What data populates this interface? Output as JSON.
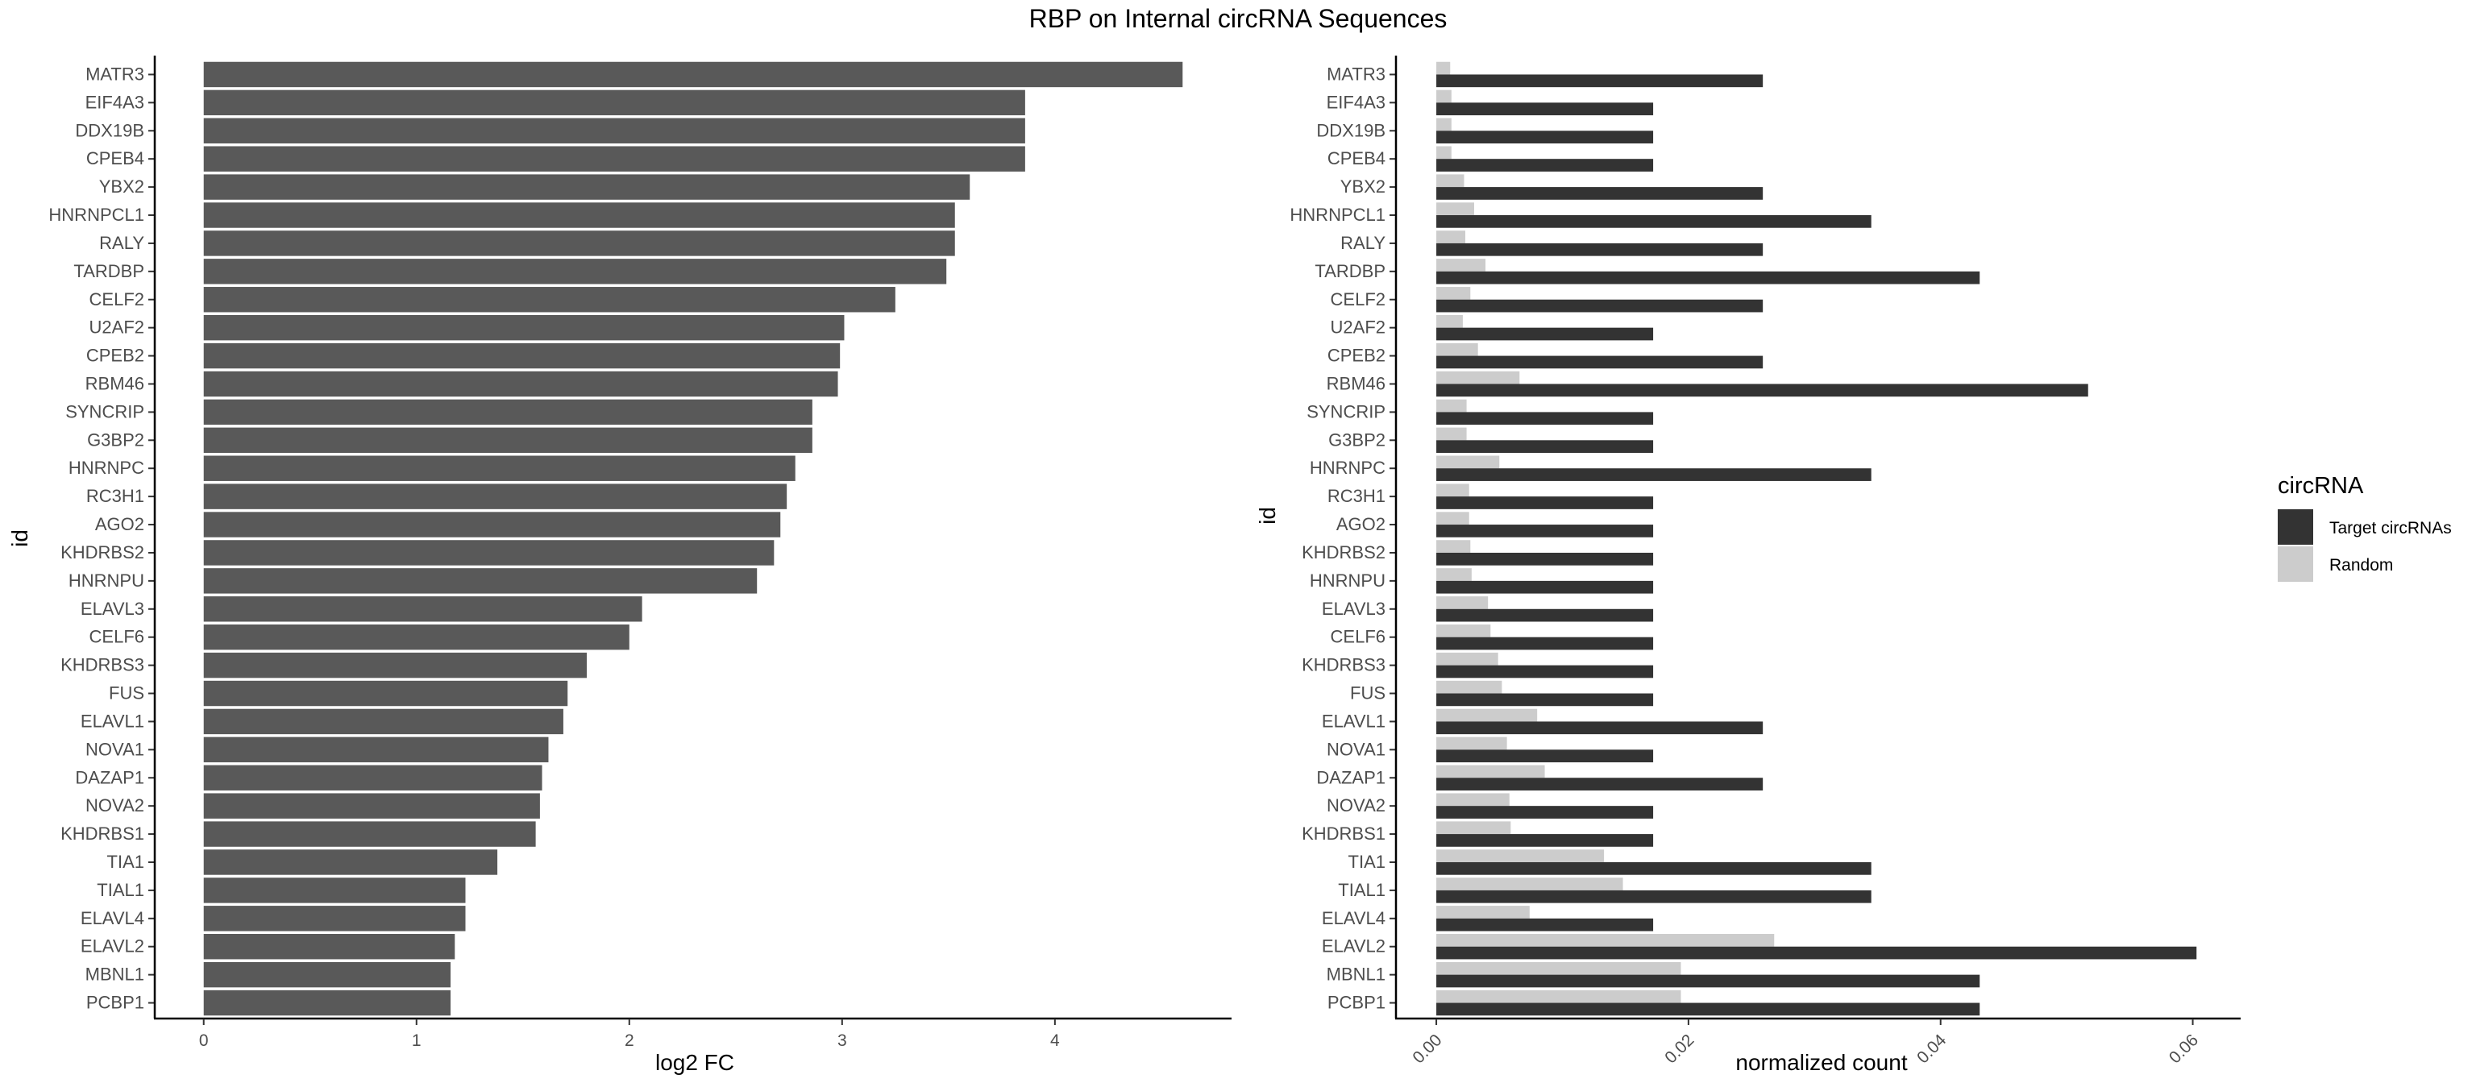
{
  "title": "RBP on Internal circRNA Sequences",
  "colors": {
    "fc_bar": "#595959",
    "target": "#333333",
    "random": "#cccccc"
  },
  "chart_data": [
    {
      "type": "bar",
      "orientation": "horizontal",
      "title": "",
      "xlabel": "log2 FC",
      "ylabel": "id",
      "xlim": [
        -0.23,
        4.83
      ],
      "xticks": [
        0,
        1,
        2,
        3,
        4
      ],
      "categories": [
        "MATR3",
        "EIF4A3",
        "DDX19B",
        "CPEB4",
        "YBX2",
        "HNRNPCL1",
        "RALY",
        "TARDBP",
        "CELF2",
        "U2AF2",
        "CPEB2",
        "RBM46",
        "SYNCRIP",
        "G3BP2",
        "HNRNPC",
        "RC3H1",
        "AGO2",
        "KHDRBS2",
        "HNRNPU",
        "ELAVL3",
        "CELF6",
        "KHDRBS3",
        "FUS",
        "ELAVL1",
        "NOVA1",
        "DAZAP1",
        "NOVA2",
        "KHDRBS1",
        "TIA1",
        "TIAL1",
        "ELAVL4",
        "ELAVL2",
        "MBNL1",
        "PCBP1"
      ],
      "values": [
        4.6,
        3.86,
        3.86,
        3.86,
        3.6,
        3.53,
        3.53,
        3.49,
        3.25,
        3.01,
        2.99,
        2.98,
        2.86,
        2.86,
        2.78,
        2.74,
        2.71,
        2.68,
        2.6,
        2.06,
        2.0,
        1.8,
        1.71,
        1.69,
        1.62,
        1.59,
        1.58,
        1.56,
        1.38,
        1.23,
        1.23,
        1.18,
        1.16,
        1.16
      ],
      "grid": false
    },
    {
      "type": "bar",
      "orientation": "horizontal",
      "title": "",
      "xlabel": "normalized count",
      "ylabel": "id",
      "xlim": [
        -0.0032,
        0.0638
      ],
      "xticks": [
        0.0,
        0.02,
        0.04,
        0.06
      ],
      "xtick_labels": [
        "0.00",
        "0.02",
        "0.04",
        "0.06"
      ],
      "categories": [
        "MATR3",
        "EIF4A3",
        "DDX19B",
        "CPEB4",
        "YBX2",
        "HNRNPCL1",
        "RALY",
        "TARDBP",
        "CELF2",
        "U2AF2",
        "CPEB2",
        "RBM46",
        "SYNCRIP",
        "G3BP2",
        "HNRNPC",
        "RC3H1",
        "AGO2",
        "KHDRBS2",
        "HNRNPU",
        "ELAVL3",
        "CELF6",
        "KHDRBS3",
        "FUS",
        "ELAVL1",
        "NOVA1",
        "DAZAP1",
        "NOVA2",
        "KHDRBS1",
        "TIA1",
        "TIAL1",
        "ELAVL4",
        "ELAVL2",
        "MBNL1",
        "PCBP1"
      ],
      "series": [
        {
          "name": "Target circRNAs",
          "values": [
            0.0259,
            0.0172,
            0.0172,
            0.0172,
            0.0259,
            0.0345,
            0.0259,
            0.0431,
            0.0259,
            0.0172,
            0.0259,
            0.0517,
            0.0172,
            0.0172,
            0.0345,
            0.0172,
            0.0172,
            0.0172,
            0.0172,
            0.0172,
            0.0172,
            0.0172,
            0.0172,
            0.0259,
            0.0172,
            0.0259,
            0.0172,
            0.0172,
            0.0345,
            0.0345,
            0.0172,
            0.0603,
            0.0431,
            0.0431
          ]
        },
        {
          "name": "Random",
          "values": [
            0.0011,
            0.0012,
            0.0012,
            0.0012,
            0.0022,
            0.003,
            0.0023,
            0.0039,
            0.0027,
            0.0021,
            0.0033,
            0.0066,
            0.0024,
            0.0024,
            0.005,
            0.0026,
            0.0026,
            0.0027,
            0.0028,
            0.0041,
            0.0043,
            0.0049,
            0.0052,
            0.008,
            0.0056,
            0.0086,
            0.0058,
            0.0059,
            0.0133,
            0.0148,
            0.0074,
            0.0268,
            0.0194,
            0.0194
          ]
        }
      ],
      "legend": {
        "title": "circRNA",
        "placement": "right"
      },
      "grid": false
    }
  ]
}
